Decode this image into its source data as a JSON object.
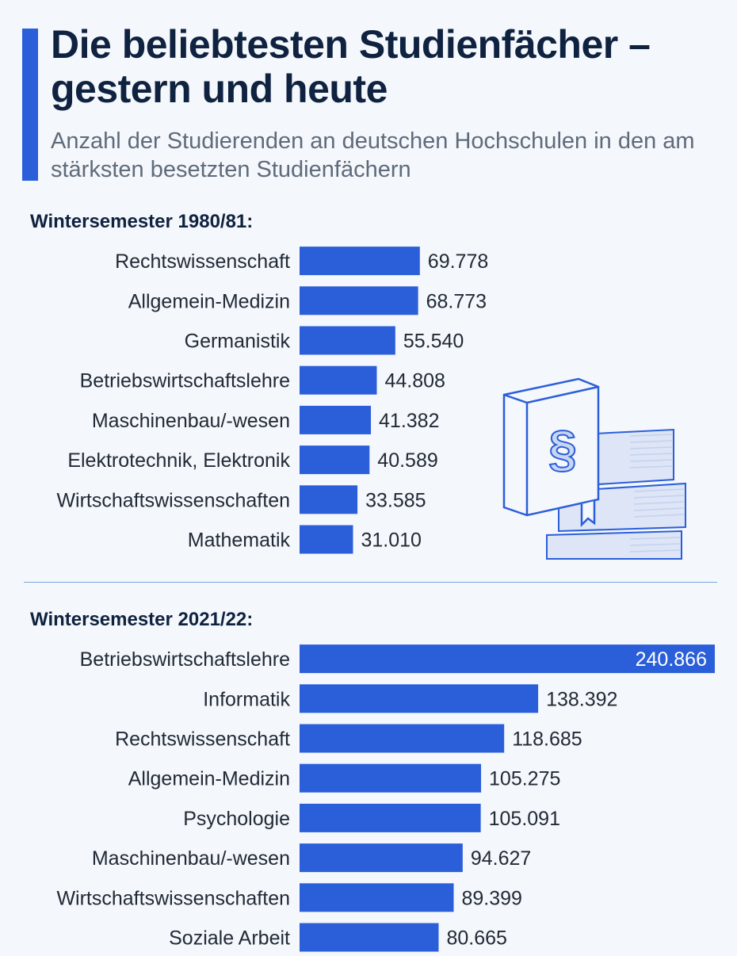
{
  "header": {
    "title": "Die beliebtesten Studienfächer – gestern und heute",
    "subtitle": "Anzahl der Studierenden an deutschen Hochschulen in den am stärksten besetzten Studienfächern"
  },
  "colors": {
    "bar": "#2b5fd9",
    "accent": "#2b5fd9",
    "illustration_stroke": "#2b5fd9",
    "illustration_fill": "#c9d6f2"
  },
  "illustration": {
    "icon": "law-book-stack-icon",
    "symbol": "§"
  },
  "chart_data": [
    {
      "type": "bar",
      "orientation": "horizontal",
      "title": "Wintersemester 1980/81:",
      "categories": [
        "Rechtswissenschaft",
        "Allgemein-Medizin",
        "Germanistik",
        "Betriebswirtschaftslehre",
        "Maschinenbau/-wesen",
        "Elektrotechnik, Elektronik",
        "Wirtschaftswissenschaften",
        "Mathematik"
      ],
      "values": [
        69778,
        68773,
        55540,
        44808,
        41382,
        40589,
        33585,
        31010
      ],
      "value_labels": [
        "69.778",
        "68.773",
        "55.540",
        "44.808",
        "41.382",
        "40.589",
        "33.585",
        "31.010"
      ],
      "xlim": [
        0,
        240866
      ]
    },
    {
      "type": "bar",
      "orientation": "horizontal",
      "title": "Wintersemester 2021/22:",
      "categories": [
        "Betriebswirtschaftslehre",
        "Informatik",
        "Rechtswissenschaft",
        "Allgemein-Medizin",
        "Psychologie",
        "Maschinenbau/-wesen",
        "Wirtschaftswissenschaften",
        "Soziale Arbeit"
      ],
      "values": [
        240866,
        138392,
        118685,
        105275,
        105091,
        94627,
        89399,
        80665
      ],
      "value_labels": [
        "240.866",
        "138.392",
        "118.685",
        "105.275",
        "105.091",
        "94.627",
        "89.399",
        "80.665"
      ],
      "xlim": [
        0,
        240866
      ]
    }
  ]
}
